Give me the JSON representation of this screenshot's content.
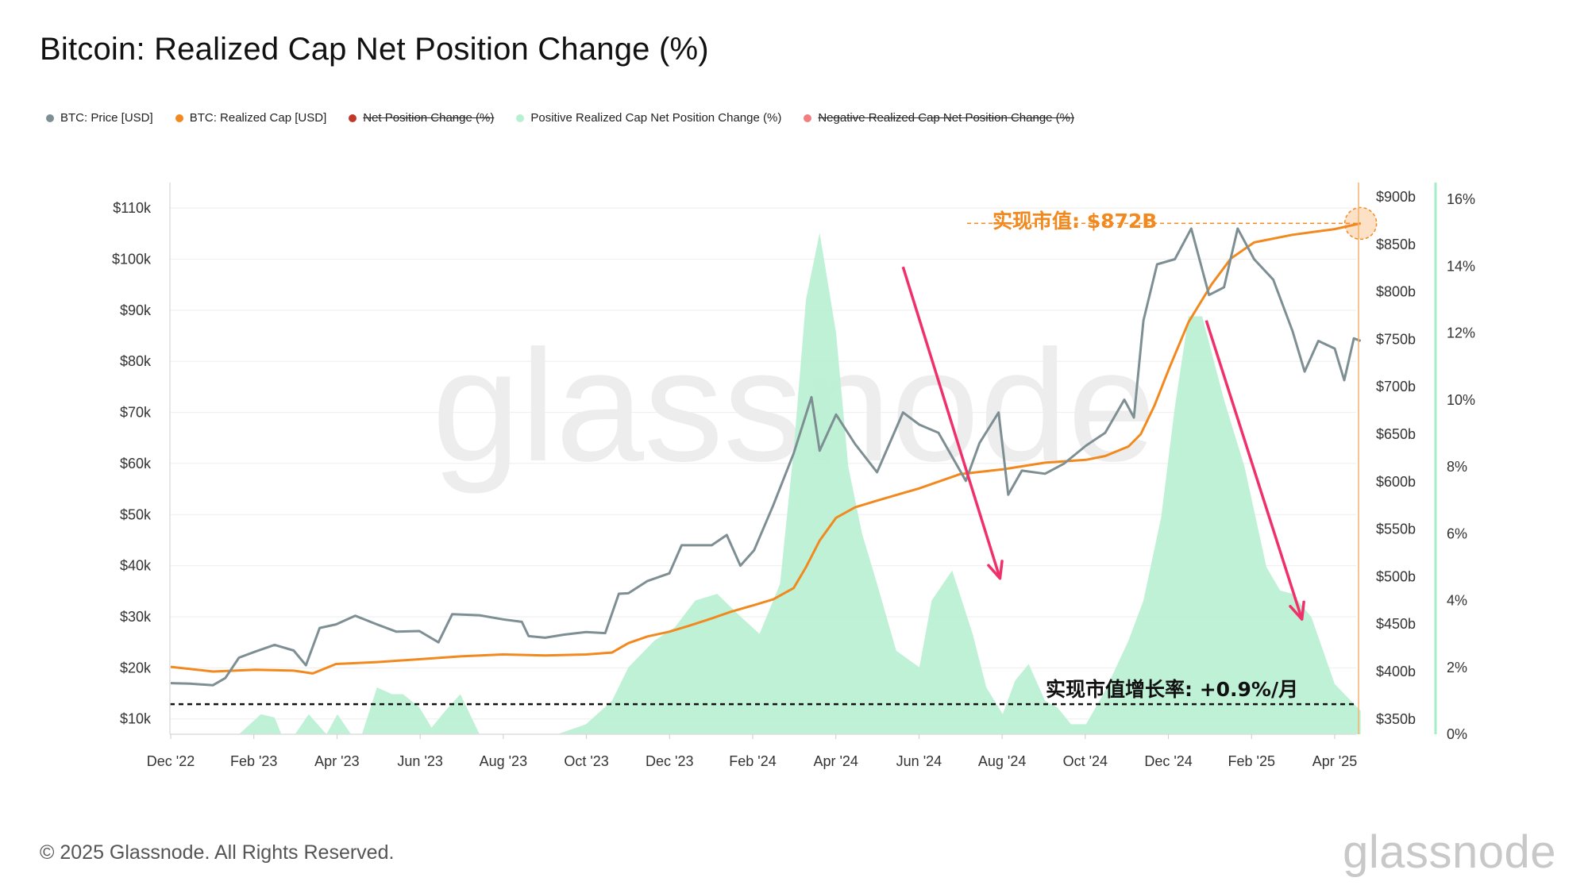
{
  "title": "Bitcoin: Realized Cap Net Position Change (%)",
  "legend": [
    {
      "label": "BTC: Price [USD]",
      "color": "#7e8f94",
      "enabled": true
    },
    {
      "label": "BTC: Realized Cap [USD]",
      "color": "#f2891f",
      "enabled": true
    },
    {
      "label": "Net Position Change (%)",
      "color": "#c0392b",
      "enabled": false
    },
    {
      "label": "Positive Realized Cap Net Position Change (%)",
      "color": "#b8f0d2",
      "enabled": true
    },
    {
      "label": "Negative Realized Cap Net Position Change (%)",
      "color": "#f08080",
      "enabled": false
    }
  ],
  "footer": "© 2025 Glassnode. All Rights Reserved.",
  "brand": "glassnode",
  "chart_data": {
    "type": "line",
    "title": "Bitcoin: Realized Cap Net Position Change (%)",
    "colors": {
      "price": "#7e8f94",
      "realized_cap": "#f2891f",
      "positive_change": "#b8f0d2",
      "arrows": "#f0306a",
      "reference_line": "#111111"
    },
    "x_ticks": [
      "Dec '22",
      "Feb '23",
      "Apr '23",
      "Jun '23",
      "Aug '23",
      "Oct '23",
      "Dec '23",
      "Feb '24",
      "Apr '24",
      "Jun '24",
      "Aug '24",
      "Oct '24",
      "Dec '24",
      "Feb '25",
      "Apr '25"
    ],
    "y_left_ticks": [
      "$10k",
      "$20k",
      "$30k",
      "$40k",
      "$50k",
      "$60k",
      "$70k",
      "$80k",
      "$90k",
      "$100k",
      "$110k"
    ],
    "y_mid_ticks": [
      "$350b",
      "$400b",
      "$450b",
      "$500b",
      "$550b",
      "$600b",
      "$650b",
      "$700b",
      "$750b",
      "$800b",
      "$850b",
      "$900b"
    ],
    "y_right_ticks": [
      "0%",
      "2%",
      "4%",
      "6%",
      "8%",
      "10%",
      "12%",
      "14%",
      "16%"
    ],
    "ylim_price": [
      7000,
      115000
    ],
    "ylim_realized_cap": [
      334,
      915
    ],
    "ylim_change_pct": [
      0,
      16.5
    ],
    "grid": true,
    "legend_position": "top-left",
    "series": [
      {
        "name": "BTC: Price [USD]",
        "axis": "left",
        "x": [
          "2022-12-01",
          "2022-12-15",
          "2023-01-01",
          "2023-01-10",
          "2023-01-20",
          "2023-02-01",
          "2023-02-15",
          "2023-03-01",
          "2023-03-10",
          "2023-03-20",
          "2023-04-01",
          "2023-04-15",
          "2023-05-01",
          "2023-05-15",
          "2023-06-01",
          "2023-06-15",
          "2023-06-25",
          "2023-07-15",
          "2023-08-01",
          "2023-08-15",
          "2023-08-20",
          "2023-09-01",
          "2023-09-15",
          "2023-10-01",
          "2023-10-15",
          "2023-10-25",
          "2023-11-01",
          "2023-11-15",
          "2023-12-01",
          "2023-12-10",
          "2024-01-01",
          "2024-01-12",
          "2024-01-22",
          "2024-02-01",
          "2024-02-15",
          "2024-03-01",
          "2024-03-14",
          "2024-03-20",
          "2024-04-01",
          "2024-04-15",
          "2024-05-01",
          "2024-05-20",
          "2024-06-01",
          "2024-06-15",
          "2024-07-05",
          "2024-07-15",
          "2024-07-29",
          "2024-08-05",
          "2024-08-15",
          "2024-09-01",
          "2024-09-15",
          "2024-10-01",
          "2024-10-15",
          "2024-10-29",
          "2024-11-05",
          "2024-11-12",
          "2024-11-22",
          "2024-12-05",
          "2024-12-17",
          "2024-12-30",
          "2025-01-10",
          "2025-01-20",
          "2025-02-01",
          "2025-02-15",
          "2025-03-01",
          "2025-03-10",
          "2025-03-20",
          "2025-04-01",
          "2025-04-08",
          "2025-04-15",
          "2025-04-20"
        ],
        "values": [
          17000,
          16900,
          16600,
          18000,
          22000,
          23200,
          24500,
          23400,
          20500,
          27800,
          28500,
          30200,
          28500,
          27100,
          27200,
          25000,
          30500,
          30300,
          29500,
          29000,
          26200,
          25900,
          26500,
          27000,
          26800,
          34500,
          34600,
          37000,
          38500,
          44000,
          44000,
          46000,
          40000,
          43000,
          51800,
          62000,
          73000,
          62500,
          69600,
          63800,
          58300,
          70000,
          67600,
          66000,
          56600,
          64000,
          70000,
          53900,
          58600,
          58000,
          60000,
          63500,
          66000,
          72500,
          69000,
          88000,
          99000,
          100000,
          106000,
          93000,
          94500,
          106000,
          100000,
          96000,
          86000,
          78000,
          84000,
          82500,
          76300,
          84500,
          84000
        ]
      },
      {
        "name": "BTC: Realized Cap [USD]",
        "axis": "mid",
        "x": [
          "2022-12-01",
          "2023-01-01",
          "2023-02-01",
          "2023-03-01",
          "2023-03-15",
          "2023-04-01",
          "2023-05-01",
          "2023-06-01",
          "2023-07-01",
          "2023-08-01",
          "2023-09-01",
          "2023-10-01",
          "2023-10-20",
          "2023-11-01",
          "2023-11-15",
          "2023-12-01",
          "2023-12-15",
          "2024-01-01",
          "2024-01-15",
          "2024-02-01",
          "2024-02-15",
          "2024-03-01",
          "2024-03-10",
          "2024-03-20",
          "2024-04-01",
          "2024-04-15",
          "2024-05-01",
          "2024-06-01",
          "2024-07-01",
          "2024-08-01",
          "2024-09-01",
          "2024-10-01",
          "2024-10-15",
          "2024-11-01",
          "2024-11-10",
          "2024-11-20",
          "2024-12-01",
          "2024-12-15",
          "2025-01-01",
          "2025-01-15",
          "2025-02-01",
          "2025-03-01",
          "2025-04-01",
          "2025-04-20"
        ],
        "values": [
          405,
          400,
          402,
          401,
          398,
          408,
          410,
          413,
          416,
          418,
          417,
          418,
          420,
          430,
          437,
          442,
          448,
          456,
          463,
          470,
          476,
          488,
          510,
          538,
          562,
          573,
          580,
          593,
          608,
          613,
          620,
          623,
          627,
          637,
          650,
          680,
          720,
          768,
          808,
          835,
          852,
          860,
          866,
          872
        ]
      },
      {
        "name": "Positive Realized Cap Net Position Change (%)",
        "axis": "right",
        "x": [
          "2022-12-01",
          "2022-12-20",
          "2023-01-08",
          "2023-01-20",
          "2023-02-05",
          "2023-02-15",
          "2023-02-20",
          "2023-03-02",
          "2023-03-12",
          "2023-03-25",
          "2023-04-02",
          "2023-04-12",
          "2023-04-20",
          "2023-05-01",
          "2023-05-12",
          "2023-05-20",
          "2023-06-01",
          "2023-06-10",
          "2023-06-20",
          "2023-07-01",
          "2023-07-15",
          "2023-08-01",
          "2023-08-10",
          "2023-08-20",
          "2023-09-10",
          "2023-10-01",
          "2023-10-20",
          "2023-11-01",
          "2023-11-20",
          "2023-12-05",
          "2023-12-20",
          "2024-01-05",
          "2024-01-20",
          "2024-02-05",
          "2024-02-20",
          "2024-03-01",
          "2024-03-10",
          "2024-03-20",
          "2024-04-01",
          "2024-04-10",
          "2024-04-20",
          "2024-05-01",
          "2024-05-15",
          "2024-06-01",
          "2024-06-10",
          "2024-06-25",
          "2024-07-10",
          "2024-07-20",
          "2024-08-01",
          "2024-08-10",
          "2024-08-20",
          "2024-09-01",
          "2024-09-10",
          "2024-09-20",
          "2024-10-01",
          "2024-10-15",
          "2024-11-01",
          "2024-11-12",
          "2024-11-25",
          "2024-12-05",
          "2024-12-15",
          "2024-12-25",
          "2025-01-10",
          "2025-01-25",
          "2025-02-10",
          "2025-02-20",
          "2025-03-01",
          "2025-03-15",
          "2025-04-01",
          "2025-04-20"
        ],
        "values": [
          0,
          0,
          0,
          0,
          0.6,
          0.5,
          0,
          0,
          0.6,
          0,
          0.6,
          0,
          0,
          1.4,
          1.2,
          1.2,
          0.8,
          0.2,
          0.7,
          1.2,
          0,
          0,
          0,
          0,
          0,
          0.3,
          1.0,
          2.0,
          2.8,
          3.2,
          4.0,
          4.2,
          3.6,
          3.0,
          4.5,
          8.5,
          13.0,
          15.0,
          12.0,
          8.0,
          6.0,
          4.5,
          2.5,
          2.0,
          4.0,
          4.9,
          3.0,
          1.4,
          0.6,
          1.6,
          2.1,
          1.0,
          0.8,
          0.3,
          0.3,
          1.3,
          2.8,
          4.0,
          6.5,
          9.8,
          12.5,
          12.5,
          10.0,
          8.0,
          5.0,
          4.3,
          4.2,
          3.5,
          1.5,
          0.7
        ]
      }
    ],
    "annotations": [
      {
        "text": "实现市值: $872B",
        "color": "#f2891f",
        "target_x": "2025-04-20",
        "target_realized_cap": 872
      },
      {
        "text": "实现市值增长率: +0.9%/月",
        "color": "#111111",
        "reference_change_pct": 0.9
      }
    ],
    "arrows": [
      {
        "from_x": "2024-05-20",
        "from_price": 98500,
        "to_x": "2024-07-30",
        "to_price": 37500
      },
      {
        "from_x": "2024-12-28",
        "from_price": 88000,
        "to_x": "2025-03-08",
        "to_price": 29500
      }
    ]
  }
}
